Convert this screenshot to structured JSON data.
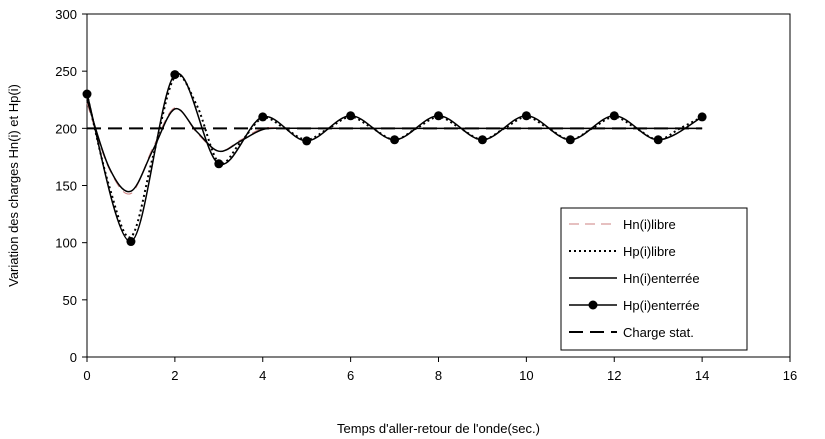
{
  "chart_data": {
    "type": "line",
    "xlabel": "Temps d'aller-retour de l'onde(sec.)",
    "ylabel": "Variation des charges Hn(i) et Hp(i)",
    "xlim": [
      0,
      16
    ],
    "ylim": [
      0,
      300
    ],
    "x_ticks": [
      0,
      2,
      4,
      6,
      8,
      10,
      12,
      14,
      16
    ],
    "y_ticks": [
      0,
      50,
      100,
      150,
      200,
      250,
      300
    ],
    "x_tick_labels": [
      "0",
      "2",
      "4",
      "6",
      "8",
      "10",
      "12",
      "14",
      "16"
    ],
    "y_tick_labels": [
      "0",
      "50",
      "100",
      "150",
      "200",
      "250",
      "300"
    ],
    "grid": false,
    "legend_position": "bottom-right",
    "series": [
      {
        "name": "Hn(i)libre",
        "color": "#cc8080",
        "style": "dashed-light",
        "x": [
          0,
          0.5,
          1,
          1.5,
          2,
          2.5,
          3,
          3.5,
          4,
          4.5,
          5,
          6,
          7,
          8,
          9,
          10,
          11,
          12,
          13,
          14
        ],
        "y": [
          222,
          165,
          143,
          183,
          218,
          196,
          180,
          190,
          200,
          200,
          200,
          200,
          200,
          200,
          200,
          200,
          200,
          200,
          200,
          200
        ]
      },
      {
        "name": "Hp(i)libre",
        "color": "#000000",
        "style": "dotted",
        "x": [
          0,
          0.5,
          1,
          1.5,
          2,
          2.5,
          3,
          3.5,
          4,
          4.5,
          5,
          5.5,
          6,
          6.5,
          7,
          7.5,
          8,
          8.5,
          9,
          9.5,
          10,
          10.5,
          11,
          11.5,
          12,
          12.5,
          13,
          13.5,
          14
        ],
        "y": [
          230,
          150,
          105,
          175,
          245,
          220,
          170,
          188,
          209,
          200,
          190,
          200,
          210,
          200,
          190,
          200,
          210,
          200,
          190,
          200,
          210,
          200,
          190,
          200,
          210,
          200,
          190,
          200,
          210
        ]
      },
      {
        "name": "Hn(i)enterrée",
        "color": "#000000",
        "style": "solid",
        "x": [
          0,
          0.5,
          1,
          1.5,
          2,
          2.5,
          3,
          3.5,
          4,
          4.5,
          5,
          6,
          7,
          8,
          9,
          10,
          11,
          12,
          13,
          14
        ],
        "y": [
          225,
          166,
          145,
          181,
          217,
          197,
          180,
          189,
          199,
          200,
          200,
          200,
          200,
          200,
          200,
          200,
          200,
          200,
          200,
          200
        ]
      },
      {
        "name": "Hp(i)enterrée",
        "color": "#000000",
        "style": "solid-markers",
        "x": [
          0,
          1,
          2,
          3,
          4,
          5,
          6,
          7,
          8,
          9,
          10,
          11,
          12,
          13,
          14
        ],
        "y": [
          230,
          101,
          247,
          169,
          210,
          189,
          211,
          190,
          211,
          190,
          211,
          190,
          211,
          190,
          210
        ]
      },
      {
        "name": "Charge stat.",
        "color": "#000000",
        "style": "dashed",
        "x": [
          0,
          14
        ],
        "y": [
          200,
          200
        ]
      }
    ]
  }
}
